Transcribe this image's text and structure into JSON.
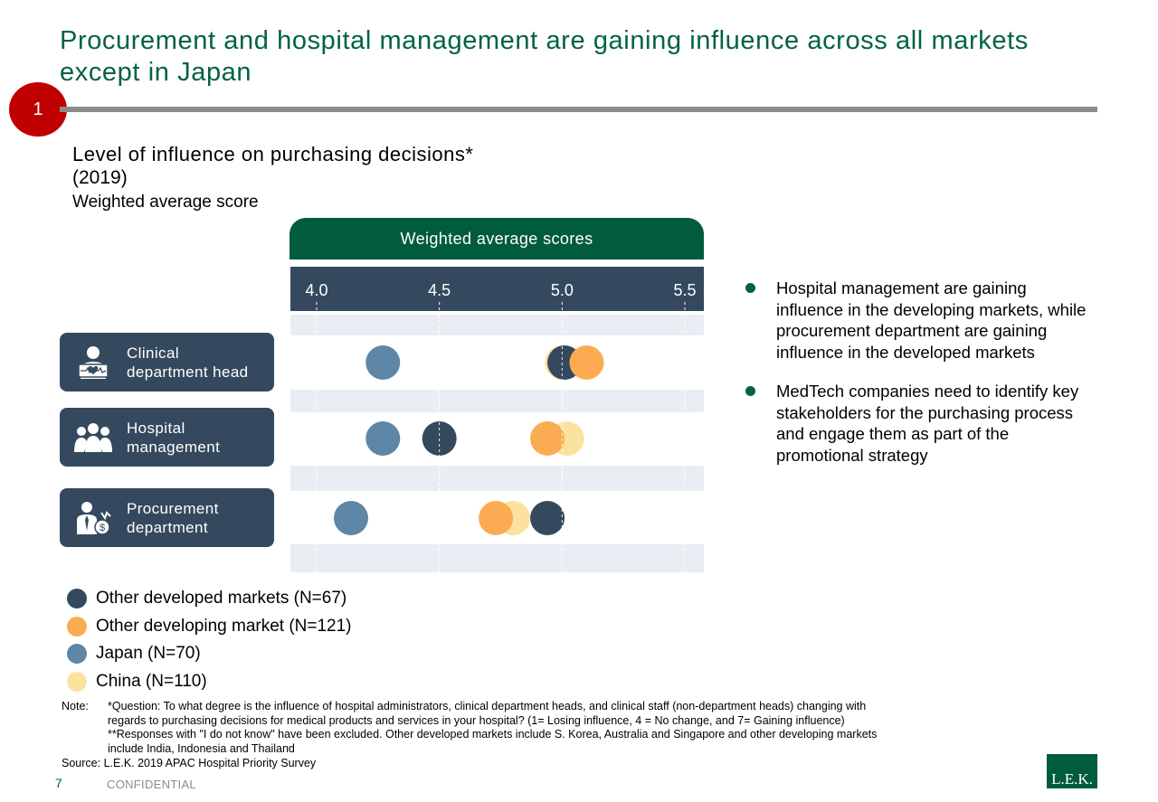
{
  "page": {
    "title": "Procurement and hospital management are gaining influence across all markets except in Japan",
    "badge": "1",
    "page_number": "7",
    "confidential": "CONFIDENTIAL",
    "logo": "L.E.K."
  },
  "chart": {
    "title": "Level of influence on purchasing decisions*",
    "year": "(2019)",
    "subtitle": "Weighted average score",
    "header": "Weighted average scores"
  },
  "categories": [
    {
      "line1": "Clinical",
      "line2": "department head",
      "icon": "clinician-icon"
    },
    {
      "line1": "Hospital",
      "line2": "management",
      "icon": "group-icon"
    },
    {
      "line1": "Procurement",
      "line2": "department",
      "icon": "procurement-icon"
    }
  ],
  "legend": [
    {
      "label": "Other developed markets (N=67)",
      "color": "#34495e"
    },
    {
      "label": "Other developing market (N=121)",
      "color": "#fbac52"
    },
    {
      "label": "Japan (N=70)",
      "color": "#5e86a6"
    },
    {
      "label": "China (N=110)",
      "color": "#fbe29f"
    }
  ],
  "bullets": [
    "Hospital management are gaining influence in the developing markets, while procurement department are gaining influence in the developed markets",
    "MedTech companies need to identify key stakeholders for the purchasing process and engage them as part of the promotional strategy"
  ],
  "notes": {
    "note_label": "Note:",
    "note_line1": "*Question: To what degree is the influence of hospital administrators, clinical department heads, and clinical staff (non-department heads) changing with",
    "note_line2": "regards to purchasing decisions for medical products and services in your hospital? (1= Losing influence, 4 = No change, and 7= Gaining influence)",
    "note_line3": "**Responses with \"I do not know\" have been excluded. Other developed markets include S. Korea, Australia and Singapore and other developing markets",
    "note_line4": "include India, Indonesia and Thailand",
    "source_label": "Source:",
    "source_text": "L.E.K. 2019 APAC Hospital Priority Survey"
  },
  "chart_data": {
    "type": "scatter",
    "title": "Level of influence on purchasing decisions*",
    "subtitle": "Weighted average score",
    "xlim": [
      3.95,
      5.55
    ],
    "ticks": [
      4.0,
      4.5,
      5.0,
      5.5
    ],
    "tick_labels": [
      "4.0",
      "4.5",
      "5.0",
      "5.5"
    ],
    "categories": [
      "Clinical department head",
      "Hospital management",
      "Procurement department"
    ],
    "series": [
      {
        "name": "China (N=110)",
        "color": "#fbe29f",
        "values": [
          5.0,
          5.02,
          4.8
        ]
      },
      {
        "name": "Japan (N=70)",
        "color": "#5e86a6",
        "values": [
          4.27,
          4.27,
          4.14
        ]
      },
      {
        "name": "Other developed markets (N=67)",
        "color": "#34495e",
        "values": [
          5.01,
          4.5,
          4.94
        ]
      },
      {
        "name": "Other developing market (N=121)",
        "color": "#fbac52",
        "values": [
          5.1,
          4.94,
          4.73
        ]
      }
    ],
    "grid": "vertical dashed",
    "legend_position": "bottom-left"
  }
}
